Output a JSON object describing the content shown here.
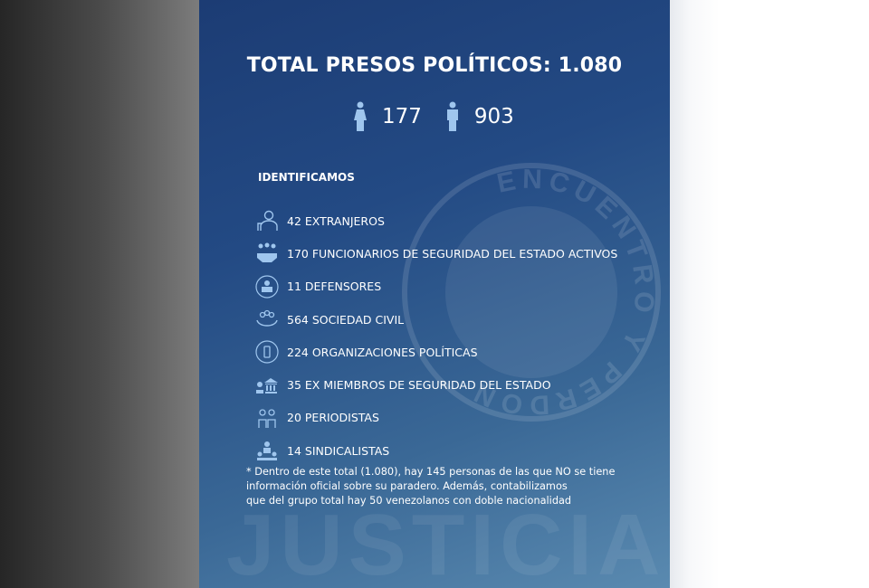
{
  "title": "TOTAL PRESOS POLÍTICOS: 1.080",
  "gender": {
    "women": "177",
    "men": "903",
    "women_icon": "female-icon",
    "men_icon": "male-icon"
  },
  "section_heading": "IDENTIFICAMOS",
  "categories": [
    {
      "label": "42 EXTRANJEROS",
      "icon": "foreigner-icon"
    },
    {
      "label": "170 FUNCIONARIOS DE SEGURIDAD DEL ESTADO ACTIVOS",
      "icon": "handshake-group-icon"
    },
    {
      "label": "11 DEFENSORES",
      "icon": "defender-icon"
    },
    {
      "label": "564 SOCIEDAD CIVIL",
      "icon": "civil-society-icon"
    },
    {
      "label": "224 ORGANIZACIONES POLÍTICAS",
      "icon": "political-org-icon"
    },
    {
      "label": "35 EX MIEMBROS DE SEGURIDAD DEL ESTADO",
      "icon": "institution-icon"
    },
    {
      "label": "20 PERIODISTAS",
      "icon": "journalist-icon"
    },
    {
      "label": "14 SINDICALISTAS",
      "icon": "union-icon"
    }
  ],
  "footnote": [
    "* Dentro de este total (1.080), hay 145 personas de las que NO se tiene",
    "información oficial sobre su paradero. Además, contabilizamos",
    "que del grupo total hay 50 venezolanos con doble nacionalidad"
  ],
  "watermark": {
    "seal_text": "JUSTICIA ENCUENTRO Y PERDON",
    "word": "JUSTICIA"
  },
  "colors": {
    "panel_top": "#1c3c74",
    "panel_bottom": "#5a8ab0",
    "icon": "#9fc6ee",
    "text": "#ffffff"
  }
}
